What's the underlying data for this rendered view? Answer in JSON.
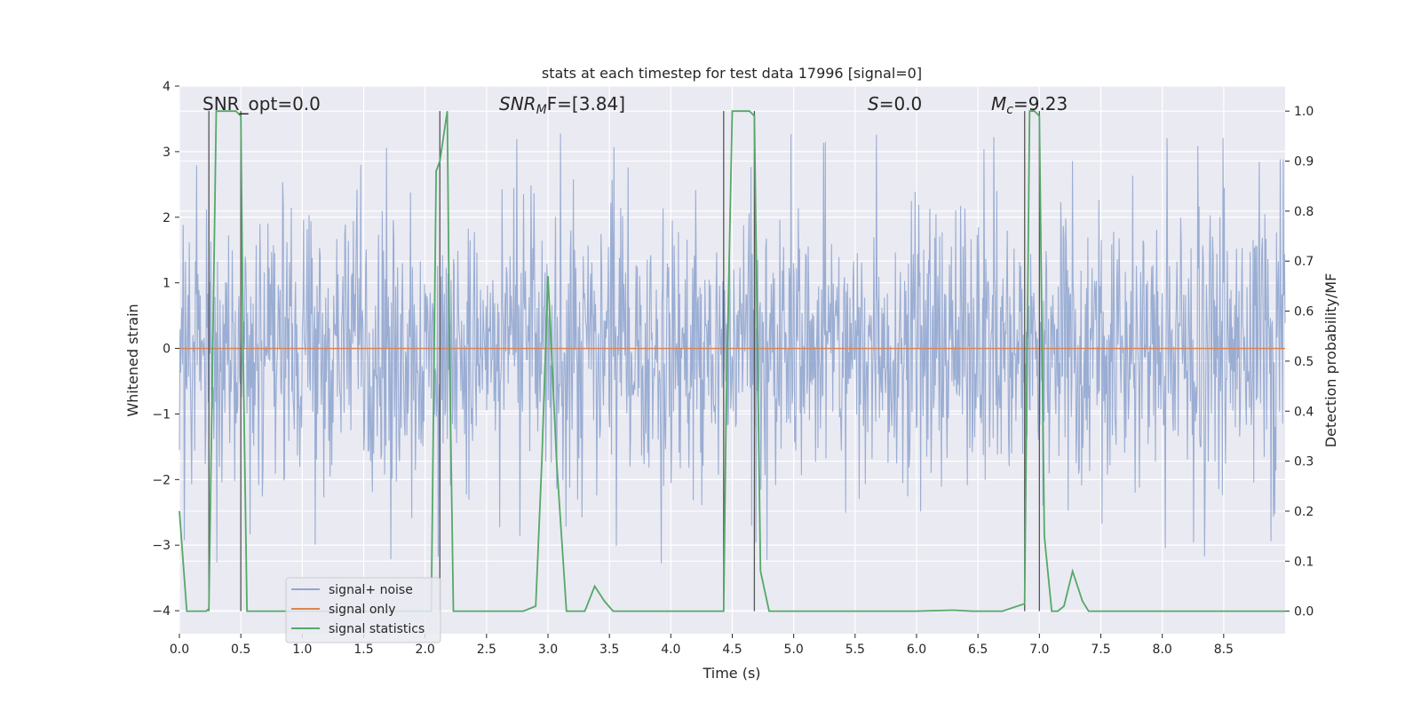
{
  "chart_data": {
    "type": "line",
    "title": "stats at each timestep for test data 17996 [signal=0]",
    "xlabel": "Time (s)",
    "ylabel": "Whitened strain",
    "y2label": "Detection probability/MF",
    "xlim": [
      0.0,
      9.0
    ],
    "ylim": [
      -4.35,
      4.0
    ],
    "y2lim": [
      -0.045,
      1.05
    ],
    "xticks": [
      "0.0",
      "0.5",
      "1.0",
      "1.5",
      "2.0",
      "2.5",
      "3.0",
      "3.5",
      "4.0",
      "4.5",
      "5.0",
      "5.5",
      "6.0",
      "6.5",
      "7.0",
      "7.5",
      "8.0",
      "8.5"
    ],
    "yticks": [
      "4",
      "3",
      "2",
      "1",
      "0",
      "−1",
      "−2",
      "−3",
      "−4"
    ],
    "ytick_values": [
      4,
      3,
      2,
      1,
      0,
      -1,
      -2,
      -3,
      -4
    ],
    "y2ticks": [
      "1.0",
      "0.9",
      "0.8",
      "0.7",
      "0.6",
      "0.5",
      "0.4",
      "0.3",
      "0.2",
      "0.1",
      "0.0"
    ],
    "y2tick_values": [
      1.0,
      0.9,
      0.8,
      0.7,
      0.6,
      0.5,
      0.4,
      0.3,
      0.2,
      0.1,
      0.0
    ],
    "grid": true,
    "legend_position": "lower-left",
    "annotations": {
      "snr_opt": "SNR_opt=0.0",
      "snr_mf_sym": "SNR",
      "snr_mf_sub": "M",
      "snr_mf_rest": "F=[3.84]",
      "s_sym": "S",
      "s_rest": "=0.0",
      "mc_sym": "M",
      "mc_sub": "c",
      "mc_rest": "=9.23"
    },
    "series": [
      {
        "name": "signal+ noise",
        "color": "#91a6cf",
        "noise_spread": 1.3,
        "noise_peak": 3.3
      },
      {
        "name": "signal only",
        "color": "#dd8452",
        "values": [
          0.0
        ]
      },
      {
        "name": "signal statistics",
        "color": "#55a868",
        "x": [
          0.0,
          0.06,
          0.1,
          0.17,
          0.22,
          0.24,
          0.3,
          0.46,
          0.5,
          0.52,
          0.55,
          0.6,
          1.0,
          1.5,
          2.0,
          2.05,
          2.09,
          2.12,
          2.18,
          2.2,
          2.23,
          2.26,
          2.3,
          2.4,
          2.5,
          2.6,
          2.7,
          2.8,
          2.9,
          2.95,
          3.0,
          3.07,
          3.15,
          3.23,
          3.3,
          3.38,
          3.46,
          3.53,
          3.6,
          4.0,
          4.43,
          4.45,
          4.5,
          4.6,
          4.64,
          4.68,
          4.73,
          4.8,
          5.0,
          5.5,
          6.0,
          6.3,
          6.45,
          6.6,
          6.7,
          6.88,
          6.92,
          6.96,
          7.0,
          7.04,
          7.1,
          7.15,
          7.2,
          7.27,
          7.35,
          7.4,
          7.5,
          8.0,
          8.5,
          9.0
        ],
        "values": [
          0.2,
          0.0,
          0.0,
          0.0,
          0.0,
          0.005,
          1.0,
          1.0,
          0.99,
          0.5,
          0.0,
          0.0,
          0.0,
          0.0,
          0.0,
          0.0,
          0.88,
          0.9,
          1.0,
          0.5,
          0.0,
          0.0,
          0.0,
          0.0,
          0.0,
          0.0,
          0.0,
          0.0,
          0.01,
          0.3,
          0.67,
          0.3,
          0.0,
          0.0,
          0.0,
          0.05,
          0.02,
          0.0,
          0.0,
          0.0,
          0.0,
          0.4,
          1.0,
          1.0,
          1.0,
          0.99,
          0.08,
          0.0,
          0.0,
          0.0,
          0.0,
          0.002,
          0.0,
          0.0,
          0.0,
          0.015,
          1.0,
          1.0,
          0.99,
          0.15,
          0.0,
          0.0,
          0.01,
          0.08,
          0.02,
          0.0,
          0.0,
          0.0,
          0.0,
          0.0
        ]
      }
    ],
    "vlines": [
      0.24,
      0.5,
      2.12,
      4.43,
      4.68,
      6.88,
      7.0
    ]
  }
}
